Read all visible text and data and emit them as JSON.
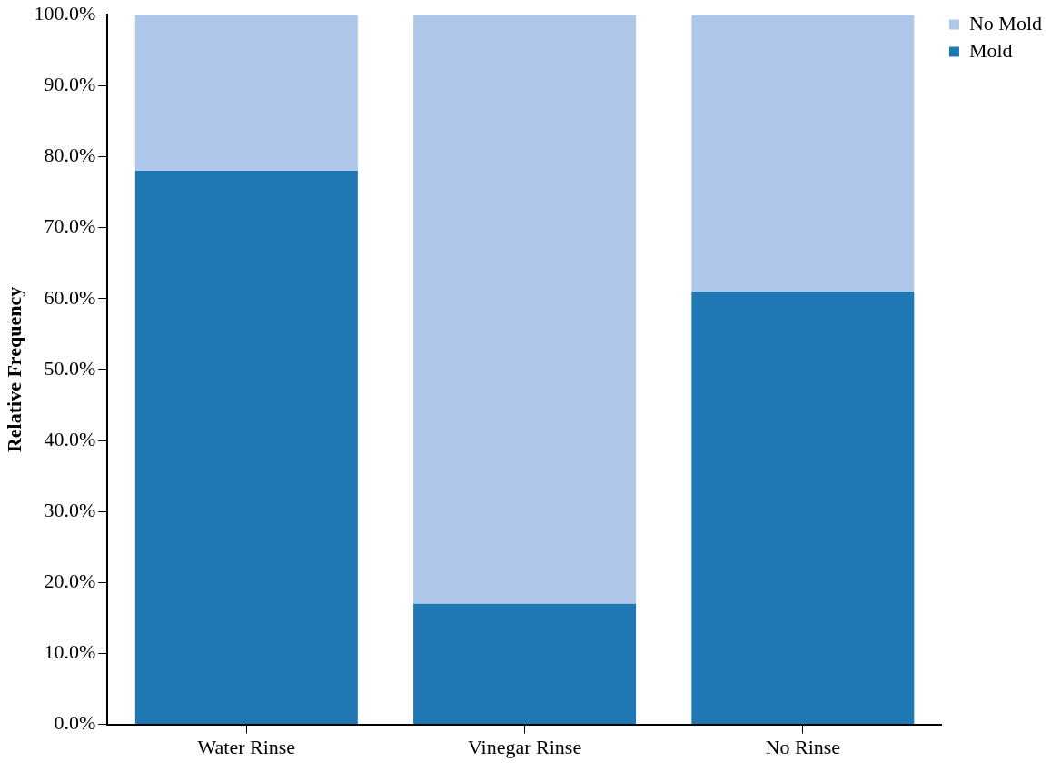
{
  "chart_data": {
    "type": "bar",
    "stacked": true,
    "ylabel": "Relative Frequency",
    "categories": [
      "Water Rinse",
      "Vinegar Rinse",
      "No Rinse"
    ],
    "series": [
      {
        "name": "Mold",
        "color": "#1f77b4",
        "values": [
          78,
          17,
          61
        ]
      },
      {
        "name": "No Mold",
        "color": "#aec7e8",
        "values": [
          22,
          83,
          39
        ]
      }
    ],
    "ylim": [
      0,
      100
    ],
    "yticks": [
      {
        "value": 0,
        "label": "0.0%"
      },
      {
        "value": 10,
        "label": "10.0%"
      },
      {
        "value": 20,
        "label": "20.0%"
      },
      {
        "value": 30,
        "label": "30.0%"
      },
      {
        "value": 40,
        "label": "40.0%"
      },
      {
        "value": 50,
        "label": "50.0%"
      },
      {
        "value": 60,
        "label": "60.0%"
      },
      {
        "value": 70,
        "label": "70.0%"
      },
      {
        "value": 80,
        "label": "80.0%"
      },
      {
        "value": 90,
        "label": "90.0%"
      },
      {
        "value": 100,
        "label": "100.0%"
      }
    ],
    "grid": false,
    "legend": "right"
  }
}
